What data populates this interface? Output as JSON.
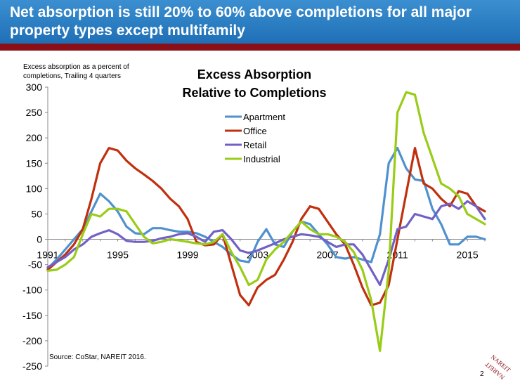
{
  "slide": {
    "title": "Net absorption is still 20% to 60% above completions for all major property types except multifamily",
    "page_number": "2",
    "source": "Source: CoStar, NAREIT 2016.",
    "logo_text": "NAREIT",
    "colors": {
      "banner": "#2a7fc4",
      "rule": "#8a0f16"
    }
  },
  "chart_data": {
    "type": "line",
    "title": "Excess Absorption\nRelative to Completions",
    "ylabel": "Excess absorption as a percent of completions, Trailing 4 quarters",
    "xlabel": "",
    "xlim": [
      1991,
      2016
    ],
    "ylim": [
      -250,
      300
    ],
    "x_ticks": [
      "1991",
      "1995",
      "1999",
      "2003",
      "2007",
      "2011",
      "2015"
    ],
    "y_ticks": [
      "300",
      "250",
      "200",
      "150",
      "100",
      "50",
      "0",
      "-50",
      "-100",
      "-150",
      "-200",
      "-250"
    ],
    "grid": false,
    "legend": "upper-middle",
    "series": [
      {
        "name": "Apartment",
        "color": "#4f91cf",
        "x": [
          1991,
          1991.5,
          1992,
          1992.5,
          1993,
          1993.5,
          1994,
          1994.5,
          1995,
          1995.5,
          1996,
          1996.5,
          1997,
          1997.5,
          1998,
          1998.5,
          1999,
          1999.5,
          2000,
          2000.5,
          2001,
          2001.5,
          2002,
          2002.5,
          2003,
          2003.5,
          2004,
          2004.5,
          2005,
          2005.5,
          2006,
          2006.5,
          2007,
          2007.5,
          2008,
          2008.5,
          2009,
          2009.5,
          2010,
          2010.5,
          2011,
          2011.5,
          2012,
          2012.5,
          2013,
          2013.5,
          2014,
          2014.5,
          2015,
          2015.5,
          2016
        ],
        "values": [
          -58,
          -40,
          -20,
          0,
          20,
          55,
          90,
          75,
          55,
          25,
          12,
          10,
          22,
          22,
          18,
          15,
          15,
          12,
          5,
          -5,
          -15,
          -30,
          -42,
          -45,
          -5,
          20,
          -10,
          -15,
          15,
          35,
          30,
          10,
          -10,
          -35,
          -38,
          -35,
          -40,
          -45,
          10,
          150,
          180,
          140,
          118,
          115,
          60,
          30,
          -10,
          -10,
          5,
          5,
          0
        ]
      },
      {
        "name": "Office",
        "color": "#c0300e",
        "x": [
          1991,
          1991.5,
          1992,
          1992.5,
          1993,
          1993.5,
          1994,
          1994.5,
          1995,
          1995.5,
          1996,
          1996.5,
          1997,
          1997.5,
          1998,
          1998.5,
          1999,
          1999.5,
          2000,
          2000.5,
          2001,
          2001.5,
          2002,
          2002.5,
          2003,
          2003.5,
          2004,
          2004.5,
          2005,
          2005.5,
          2006,
          2006.5,
          2007,
          2007.5,
          2008,
          2008.5,
          2009,
          2009.5,
          2010,
          2010.5,
          2011,
          2011.5,
          2012,
          2012.5,
          2013,
          2013.5,
          2014,
          2014.5,
          2015,
          2015.5,
          2016
        ],
        "values": [
          -60,
          -45,
          -30,
          -10,
          20,
          80,
          150,
          180,
          175,
          155,
          140,
          128,
          115,
          100,
          80,
          65,
          40,
          -5,
          -12,
          -10,
          10,
          -50,
          -110,
          -130,
          -95,
          -80,
          -70,
          -40,
          -5,
          40,
          65,
          60,
          35,
          10,
          -10,
          -50,
          -95,
          -130,
          -125,
          -90,
          0,
          90,
          180,
          110,
          100,
          80,
          65,
          95,
          90,
          65,
          55
        ]
      },
      {
        "name": "Retail",
        "color": "#7161c5",
        "x": [
          1991,
          1991.5,
          1992,
          1992.5,
          1993,
          1993.5,
          1994,
          1994.5,
          1995,
          1995.5,
          1996,
          1996.5,
          1997,
          1997.5,
          1998,
          1998.5,
          1999,
          1999.5,
          2000,
          2000.5,
          2001,
          2001.5,
          2002,
          2002.5,
          2003,
          2003.5,
          2004,
          2004.5,
          2005,
          2005.5,
          2006,
          2006.5,
          2007,
          2007.5,
          2008,
          2008.5,
          2009,
          2009.5,
          2010,
          2010.5,
          2011,
          2011.5,
          2012,
          2012.5,
          2013,
          2013.5,
          2014,
          2014.5,
          2015,
          2015.5,
          2016
        ],
        "values": [
          -55,
          -45,
          -35,
          -20,
          -10,
          5,
          12,
          18,
          10,
          -3,
          -5,
          -5,
          -3,
          2,
          5,
          10,
          12,
          5,
          -5,
          15,
          18,
          0,
          -22,
          -27,
          -22,
          -15,
          -8,
          0,
          5,
          10,
          8,
          5,
          -5,
          -15,
          -10,
          -10,
          -30,
          -60,
          -90,
          -40,
          20,
          25,
          50,
          45,
          40,
          65,
          70,
          60,
          75,
          65,
          40
        ]
      },
      {
        "name": "Industrial",
        "color": "#99cc17",
        "x": [
          1991,
          1991.5,
          1992,
          1992.5,
          1993,
          1993.5,
          1994,
          1994.5,
          1995,
          1995.5,
          1996,
          1996.5,
          1997,
          1997.5,
          1998,
          1998.5,
          1999,
          1999.5,
          2000,
          2000.5,
          2001,
          2001.5,
          2002,
          2002.5,
          2003,
          2003.5,
          2004,
          2004.5,
          2005,
          2005.5,
          2006,
          2006.5,
          2007,
          2007.5,
          2008,
          2008.5,
          2009,
          2009.5,
          2010,
          2010.5,
          2011,
          2011.5,
          2012,
          2012.5,
          2013,
          2013.5,
          2014,
          2014.5,
          2015,
          2015.5,
          2016
        ],
        "values": [
          -62,
          -60,
          -50,
          -35,
          10,
          50,
          45,
          60,
          60,
          55,
          30,
          5,
          -8,
          -5,
          0,
          -2,
          -5,
          -8,
          -10,
          -5,
          10,
          -25,
          -55,
          -90,
          -80,
          -40,
          -20,
          -5,
          15,
          35,
          20,
          10,
          10,
          5,
          -5,
          -25,
          -60,
          -120,
          -220,
          -60,
          250,
          290,
          285,
          210,
          160,
          110,
          100,
          85,
          50,
          40,
          30
        ]
      }
    ]
  }
}
